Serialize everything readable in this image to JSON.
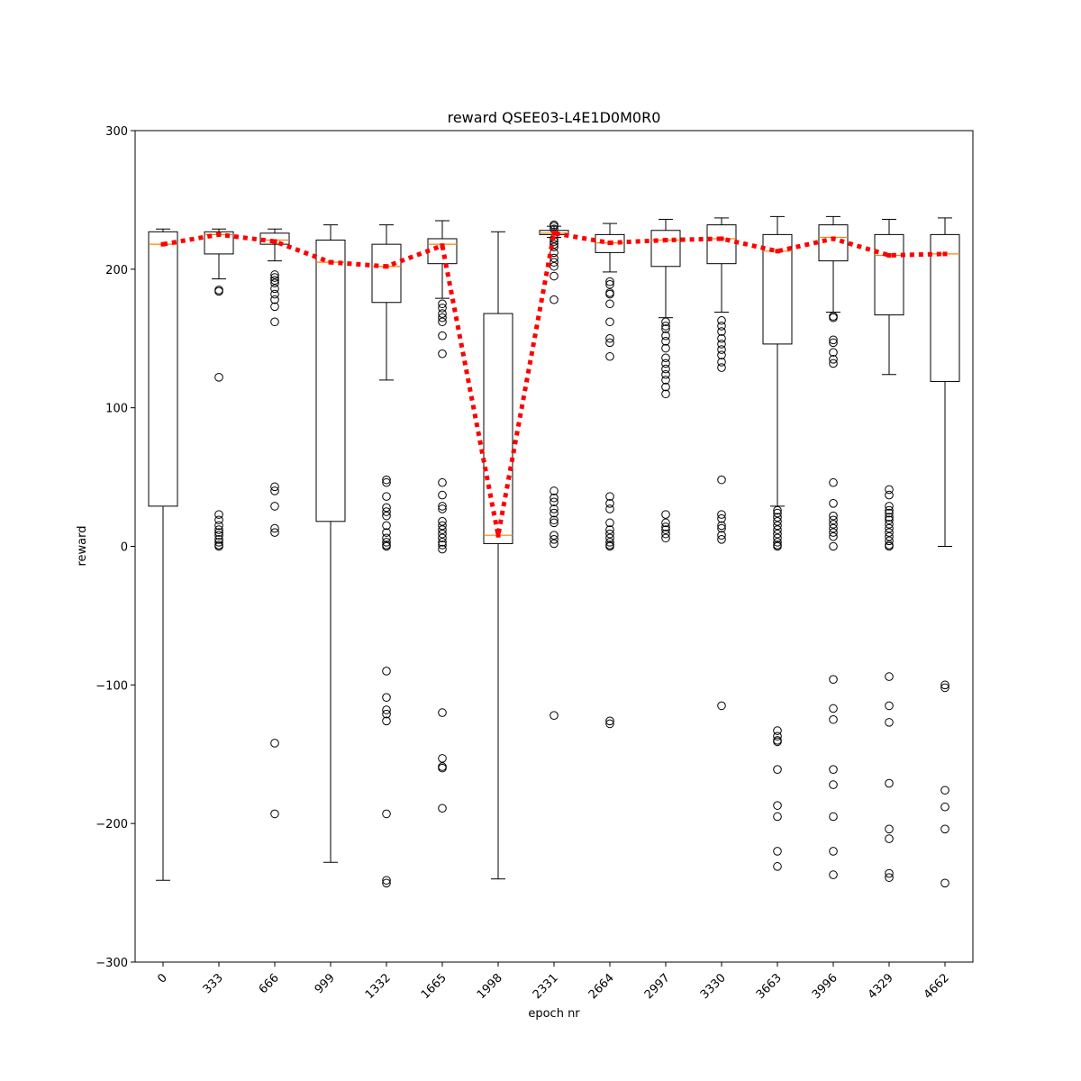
{
  "chart_data": {
    "type": "boxplot",
    "title": "reward QSEE03-L4E1D0M0R0",
    "xlabel": "epoch nr",
    "ylabel": "reward",
    "ylim": [
      -300,
      300
    ],
    "yticks": [
      -300,
      -200,
      -100,
      0,
      100,
      200,
      300
    ],
    "grid": false,
    "categories": [
      "0",
      "333",
      "666",
      "999",
      "1332",
      "1665",
      "1998",
      "2331",
      "2664",
      "2997",
      "3330",
      "3663",
      "3996",
      "4329",
      "4662"
    ],
    "boxes": [
      {
        "whislo": -241,
        "q1": 29,
        "med": 218,
        "q3": 227,
        "whishi": 229,
        "fliers": []
      },
      {
        "whislo": 193,
        "q1": 211,
        "med": 225,
        "q3": 227,
        "whishi": 229,
        "fliers": [
          185,
          184,
          122,
          23,
          19,
          15,
          12,
          10,
          8,
          5,
          3,
          1,
          0
        ]
      },
      {
        "whislo": 206,
        "q1": 218,
        "med": 221,
        "q3": 226,
        "whishi": 229,
        "fliers": [
          196,
          194,
          192,
          190,
          186,
          182,
          178,
          173,
          162,
          43,
          40,
          29,
          13,
          10,
          -142,
          -193
        ]
      },
      {
        "whislo": -228,
        "q1": 18,
        "med": 205,
        "q3": 221,
        "whishi": 232,
        "fliers": []
      },
      {
        "whislo": 120,
        "q1": 176,
        "med": 202,
        "q3": 218,
        "whishi": 232,
        "fliers": [
          48,
          46,
          36,
          28,
          25,
          22,
          15,
          10,
          6,
          3,
          1,
          0,
          -90,
          -109,
          -118,
          -121,
          -126,
          -193,
          -241,
          -243
        ]
      },
      {
        "whislo": 179,
        "q1": 204,
        "med": 218,
        "q3": 222,
        "whishi": 235,
        "fliers": [
          175,
          172,
          168,
          165,
          162,
          152,
          139,
          46,
          37,
          29,
          27,
          18,
          15,
          12,
          9,
          6,
          3,
          1,
          -2,
          -120,
          -153,
          -159,
          -160,
          -189
        ]
      },
      {
        "whislo": -240,
        "q1": 2,
        "med": 8,
        "q3": 168,
        "whishi": 227,
        "fliers": []
      },
      {
        "whislo": 223,
        "q1": 225,
        "med": 226,
        "q3": 228,
        "whishi": 231,
        "fliers": [
          232,
          231,
          229,
          222,
          220,
          218,
          216,
          212,
          208,
          205,
          202,
          195,
          178,
          40,
          35,
          32,
          27,
          24,
          19,
          17,
          8,
          5,
          2,
          -122
        ]
      },
      {
        "whislo": 198,
        "q1": 212,
        "med": 219,
        "q3": 225,
        "whishi": 233,
        "fliers": [
          191,
          189,
          183,
          182,
          175,
          162,
          150,
          147,
          137,
          36,
          31,
          27,
          17,
          12,
          9,
          6,
          3,
          1,
          0,
          -126,
          -128
        ]
      },
      {
        "whislo": 165,
        "q1": 202,
        "med": 221,
        "q3": 228,
        "whishi": 236,
        "fliers": [
          162,
          159,
          157,
          152,
          148,
          143,
          136,
          132,
          128,
          124,
          120,
          115,
          110,
          23,
          17,
          14,
          12,
          9,
          6
        ]
      },
      {
        "whislo": 169,
        "q1": 204,
        "med": 222,
        "q3": 232,
        "whishi": 237,
        "fliers": [
          163,
          159,
          155,
          150,
          146,
          142,
          138,
          133,
          129,
          48,
          23,
          20,
          15,
          13,
          8,
          5,
          -115
        ]
      },
      {
        "whislo": 29,
        "q1": 146,
        "med": 213,
        "q3": 225,
        "whishi": 238,
        "fliers": [
          26,
          24,
          21,
          18,
          15,
          12,
          9,
          6,
          3,
          1,
          0,
          -133,
          -137,
          -140,
          -141,
          -161,
          -187,
          -195,
          -220,
          -231
        ]
      },
      {
        "whislo": 169,
        "q1": 206,
        "med": 223,
        "q3": 232,
        "whishi": 238,
        "fliers": [
          166,
          165,
          149,
          147,
          140,
          135,
          132,
          46,
          31,
          22,
          19,
          16,
          13,
          10,
          7,
          0,
          -96,
          -117,
          -125,
          -161,
          -172,
          -195,
          -220,
          -237
        ]
      },
      {
        "whislo": 124,
        "q1": 167,
        "med": 210,
        "q3": 225,
        "whishi": 236,
        "fliers": [
          41,
          37,
          29,
          26,
          24,
          21,
          19,
          16,
          13,
          10,
          7,
          4,
          1,
          0,
          -94,
          -115,
          -127,
          -171,
          -204,
          -211,
          -236,
          -239
        ]
      },
      {
        "whislo": 0,
        "q1": 119,
        "med": 211,
        "q3": 225,
        "whishi": 237,
        "fliers": [
          -100,
          -102,
          -176,
          -188,
          -204,
          -243
        ]
      }
    ],
    "mean_line": {
      "values": [
        218,
        225,
        220,
        205,
        202,
        217,
        8,
        226,
        219,
        221,
        222,
        213,
        222,
        210,
        211
      ],
      "color": "#ff0000",
      "style": "dotted"
    },
    "colors": {
      "box": "#000000",
      "median": "#ff7f0e",
      "mean": "#ff0000"
    }
  }
}
